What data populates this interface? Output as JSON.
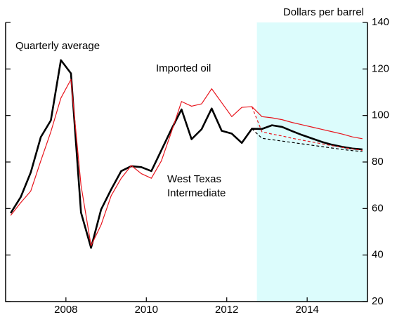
{
  "chart_data": {
    "type": "line",
    "y_axis_label": "Dollars per barrel",
    "annotations": {
      "quarterly": "Quarterly average",
      "imported": "Imported oil",
      "wti": [
        "West Texas",
        "Intermediate"
      ]
    },
    "annotation_colors": {
      "quarterly": "#000000",
      "imported": "#e8141c",
      "wti": "#000000"
    },
    "forecast_region": [
      2013.25,
      2016.0
    ],
    "forecast_color": "#dcfcfc",
    "x": [
      2007.125,
      2007.375,
      2007.625,
      2007.875,
      2008.125,
      2008.375,
      2008.625,
      2008.875,
      2009.125,
      2009.375,
      2009.625,
      2009.875,
      2010.125,
      2010.375,
      2010.625,
      2010.875,
      2011.125,
      2011.375,
      2011.625,
      2011.875,
      2012.125,
      2012.375,
      2012.625,
      2012.875,
      2013.125,
      2013.375,
      2013.625,
      2013.875,
      2014.125,
      2014.375,
      2014.625,
      2014.875,
      2015.125,
      2015.375,
      2015.625,
      2015.875
    ],
    "series": [
      {
        "color": "#000000",
        "width": 2.6,
        "dash": false,
        "values": [
          58,
          64.9,
          75.5,
          90.7,
          97.9,
          123.8,
          118.1,
          58.3,
          43.1,
          59.6,
          68.2,
          76.1,
          78.2,
          77.8,
          76.1,
          85.1,
          94.1,
          102.6,
          89.8,
          94.1,
          103.0,
          93.4,
          92.2,
          88.2,
          94.3,
          94.2,
          95.8,
          95.1,
          93.3,
          91.6,
          90.1,
          88.6,
          87.4,
          86.5,
          85.8,
          85.4
        ]
      },
      {
        "color": "#e8141c",
        "width": 1.2,
        "dash": false,
        "values": [
          57,
          62.5,
          67.5,
          80.5,
          93,
          107.5,
          115.5,
          70,
          44,
          53,
          65.5,
          73,
          78.5,
          75,
          73,
          80.5,
          93,
          106,
          104,
          105,
          111.5,
          105.5,
          99.5,
          103.5,
          103.8,
          99.5,
          99,
          98.2,
          97,
          96,
          95,
          94,
          93,
          92,
          90.8,
          90
        ]
      },
      {
        "color": "#e8141c",
        "width": 1.2,
        "dash": true,
        "values": [
          null,
          null,
          null,
          null,
          null,
          null,
          null,
          null,
          null,
          null,
          null,
          null,
          null,
          null,
          null,
          null,
          null,
          null,
          null,
          null,
          null,
          null,
          null,
          null,
          103.8,
          93,
          92,
          91.2,
          90.2,
          89.4,
          88.6,
          87.8,
          87,
          86.3,
          85.6,
          85
        ]
      },
      {
        "color": "#000000",
        "width": 1.2,
        "dash": true,
        "values": [
          null,
          null,
          null,
          null,
          null,
          null,
          null,
          null,
          null,
          null,
          null,
          null,
          null,
          null,
          null,
          null,
          null,
          null,
          null,
          null,
          null,
          null,
          null,
          null,
          94.3,
          90.2,
          89.6,
          89,
          88.4,
          87.8,
          87.2,
          86.6,
          86,
          85.4,
          84.9,
          84.5
        ]
      }
    ],
    "xlim": [
      2007.0,
      2016.0
    ],
    "xticks": [
      {
        "value": 2008.5,
        "label": "2008"
      },
      {
        "value": 2010.5,
        "label": "2010"
      },
      {
        "value": 2012.5,
        "label": "2012"
      },
      {
        "value": 2014.5,
        "label": "2014"
      }
    ],
    "ylim": [
      20,
      140
    ],
    "yticks": [
      20,
      40,
      60,
      80,
      100,
      120,
      140
    ],
    "y_axis_side": "right"
  }
}
